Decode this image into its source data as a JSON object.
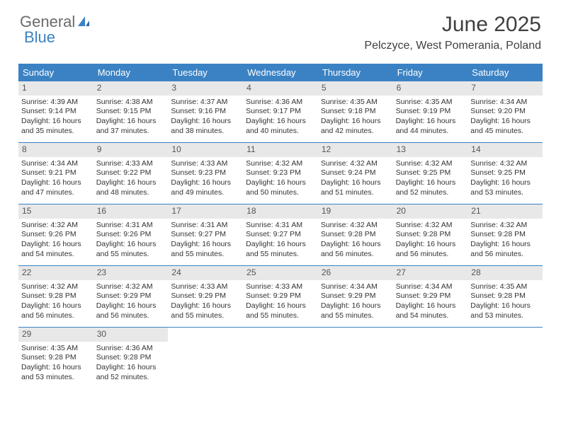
{
  "logo": {
    "part1": "General",
    "part2": "Blue"
  },
  "title": "June 2025",
  "subtitle": "Pelczyce, West Pomerania, Poland",
  "colors": {
    "header_bg": "#3b82c4",
    "header_fg": "#ffffff",
    "daynum_bg": "#e8e8e8",
    "text": "#333333",
    "logo_gray": "#6b6b6b",
    "logo_blue": "#3b82c4"
  },
  "day_names": [
    "Sunday",
    "Monday",
    "Tuesday",
    "Wednesday",
    "Thursday",
    "Friday",
    "Saturday"
  ],
  "weeks": [
    [
      {
        "n": "1",
        "sr": "Sunrise: 4:39 AM",
        "ss": "Sunset: 9:14 PM",
        "d1": "Daylight: 16 hours",
        "d2": "and 35 minutes."
      },
      {
        "n": "2",
        "sr": "Sunrise: 4:38 AM",
        "ss": "Sunset: 9:15 PM",
        "d1": "Daylight: 16 hours",
        "d2": "and 37 minutes."
      },
      {
        "n": "3",
        "sr": "Sunrise: 4:37 AM",
        "ss": "Sunset: 9:16 PM",
        "d1": "Daylight: 16 hours",
        "d2": "and 38 minutes."
      },
      {
        "n": "4",
        "sr": "Sunrise: 4:36 AM",
        "ss": "Sunset: 9:17 PM",
        "d1": "Daylight: 16 hours",
        "d2": "and 40 minutes."
      },
      {
        "n": "5",
        "sr": "Sunrise: 4:35 AM",
        "ss": "Sunset: 9:18 PM",
        "d1": "Daylight: 16 hours",
        "d2": "and 42 minutes."
      },
      {
        "n": "6",
        "sr": "Sunrise: 4:35 AM",
        "ss": "Sunset: 9:19 PM",
        "d1": "Daylight: 16 hours",
        "d2": "and 44 minutes."
      },
      {
        "n": "7",
        "sr": "Sunrise: 4:34 AM",
        "ss": "Sunset: 9:20 PM",
        "d1": "Daylight: 16 hours",
        "d2": "and 45 minutes."
      }
    ],
    [
      {
        "n": "8",
        "sr": "Sunrise: 4:34 AM",
        "ss": "Sunset: 9:21 PM",
        "d1": "Daylight: 16 hours",
        "d2": "and 47 minutes."
      },
      {
        "n": "9",
        "sr": "Sunrise: 4:33 AM",
        "ss": "Sunset: 9:22 PM",
        "d1": "Daylight: 16 hours",
        "d2": "and 48 minutes."
      },
      {
        "n": "10",
        "sr": "Sunrise: 4:33 AM",
        "ss": "Sunset: 9:23 PM",
        "d1": "Daylight: 16 hours",
        "d2": "and 49 minutes."
      },
      {
        "n": "11",
        "sr": "Sunrise: 4:32 AM",
        "ss": "Sunset: 9:23 PM",
        "d1": "Daylight: 16 hours",
        "d2": "and 50 minutes."
      },
      {
        "n": "12",
        "sr": "Sunrise: 4:32 AM",
        "ss": "Sunset: 9:24 PM",
        "d1": "Daylight: 16 hours",
        "d2": "and 51 minutes."
      },
      {
        "n": "13",
        "sr": "Sunrise: 4:32 AM",
        "ss": "Sunset: 9:25 PM",
        "d1": "Daylight: 16 hours",
        "d2": "and 52 minutes."
      },
      {
        "n": "14",
        "sr": "Sunrise: 4:32 AM",
        "ss": "Sunset: 9:25 PM",
        "d1": "Daylight: 16 hours",
        "d2": "and 53 minutes."
      }
    ],
    [
      {
        "n": "15",
        "sr": "Sunrise: 4:32 AM",
        "ss": "Sunset: 9:26 PM",
        "d1": "Daylight: 16 hours",
        "d2": "and 54 minutes."
      },
      {
        "n": "16",
        "sr": "Sunrise: 4:31 AM",
        "ss": "Sunset: 9:26 PM",
        "d1": "Daylight: 16 hours",
        "d2": "and 55 minutes."
      },
      {
        "n": "17",
        "sr": "Sunrise: 4:31 AM",
        "ss": "Sunset: 9:27 PM",
        "d1": "Daylight: 16 hours",
        "d2": "and 55 minutes."
      },
      {
        "n": "18",
        "sr": "Sunrise: 4:31 AM",
        "ss": "Sunset: 9:27 PM",
        "d1": "Daylight: 16 hours",
        "d2": "and 55 minutes."
      },
      {
        "n": "19",
        "sr": "Sunrise: 4:32 AM",
        "ss": "Sunset: 9:28 PM",
        "d1": "Daylight: 16 hours",
        "d2": "and 56 minutes."
      },
      {
        "n": "20",
        "sr": "Sunrise: 4:32 AM",
        "ss": "Sunset: 9:28 PM",
        "d1": "Daylight: 16 hours",
        "d2": "and 56 minutes."
      },
      {
        "n": "21",
        "sr": "Sunrise: 4:32 AM",
        "ss": "Sunset: 9:28 PM",
        "d1": "Daylight: 16 hours",
        "d2": "and 56 minutes."
      }
    ],
    [
      {
        "n": "22",
        "sr": "Sunrise: 4:32 AM",
        "ss": "Sunset: 9:28 PM",
        "d1": "Daylight: 16 hours",
        "d2": "and 56 minutes."
      },
      {
        "n": "23",
        "sr": "Sunrise: 4:32 AM",
        "ss": "Sunset: 9:29 PM",
        "d1": "Daylight: 16 hours",
        "d2": "and 56 minutes."
      },
      {
        "n": "24",
        "sr": "Sunrise: 4:33 AM",
        "ss": "Sunset: 9:29 PM",
        "d1": "Daylight: 16 hours",
        "d2": "and 55 minutes."
      },
      {
        "n": "25",
        "sr": "Sunrise: 4:33 AM",
        "ss": "Sunset: 9:29 PM",
        "d1": "Daylight: 16 hours",
        "d2": "and 55 minutes."
      },
      {
        "n": "26",
        "sr": "Sunrise: 4:34 AM",
        "ss": "Sunset: 9:29 PM",
        "d1": "Daylight: 16 hours",
        "d2": "and 55 minutes."
      },
      {
        "n": "27",
        "sr": "Sunrise: 4:34 AM",
        "ss": "Sunset: 9:29 PM",
        "d1": "Daylight: 16 hours",
        "d2": "and 54 minutes."
      },
      {
        "n": "28",
        "sr": "Sunrise: 4:35 AM",
        "ss": "Sunset: 9:28 PM",
        "d1": "Daylight: 16 hours",
        "d2": "and 53 minutes."
      }
    ],
    [
      {
        "n": "29",
        "sr": "Sunrise: 4:35 AM",
        "ss": "Sunset: 9:28 PM",
        "d1": "Daylight: 16 hours",
        "d2": "and 53 minutes."
      },
      {
        "n": "30",
        "sr": "Sunrise: 4:36 AM",
        "ss": "Sunset: 9:28 PM",
        "d1": "Daylight: 16 hours",
        "d2": "and 52 minutes."
      },
      null,
      null,
      null,
      null,
      null
    ]
  ]
}
